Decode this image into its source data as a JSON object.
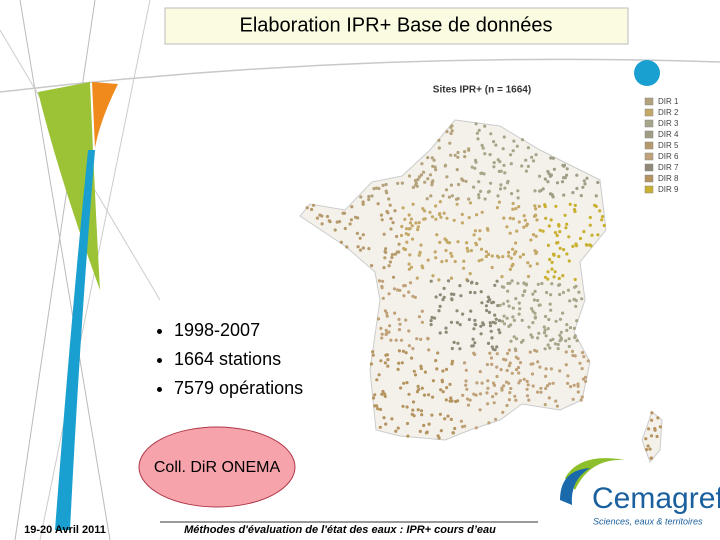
{
  "header": {
    "title": "Elaboration IPR+ Base de données"
  },
  "map": {
    "title": "Sites IPR+ (n = 1664)",
    "legend": [
      {
        "name": "DIR 1",
        "color": "#b3a27c"
      },
      {
        "name": "DIR 2",
        "color": "#c4a868"
      },
      {
        "name": "DIR 3",
        "color": "#a7a58a"
      },
      {
        "name": "DIR 4",
        "color": "#9f9d86"
      },
      {
        "name": "DIR 5",
        "color": "#b69a6c"
      },
      {
        "name": "DIR 6",
        "color": "#c0a27a"
      },
      {
        "name": "DIR 7",
        "color": "#8f8a78"
      },
      {
        "name": "DIR 8",
        "color": "#b59460"
      },
      {
        "name": "DIR 9",
        "color": "#c9b030"
      }
    ]
  },
  "bullets": [
    "1998-2007",
    "1664 stations",
    "7579 opérations"
  ],
  "callout": "Coll. DiR ONEMA",
  "footer": {
    "date": "19-20 Avril 2011",
    "text": "Méthodes d'évaluation de l'état des eaux : IPR+ cours d’eau"
  },
  "logo": {
    "name": "Cemagref",
    "tagline": "Sciences, eaux & territoires"
  }
}
